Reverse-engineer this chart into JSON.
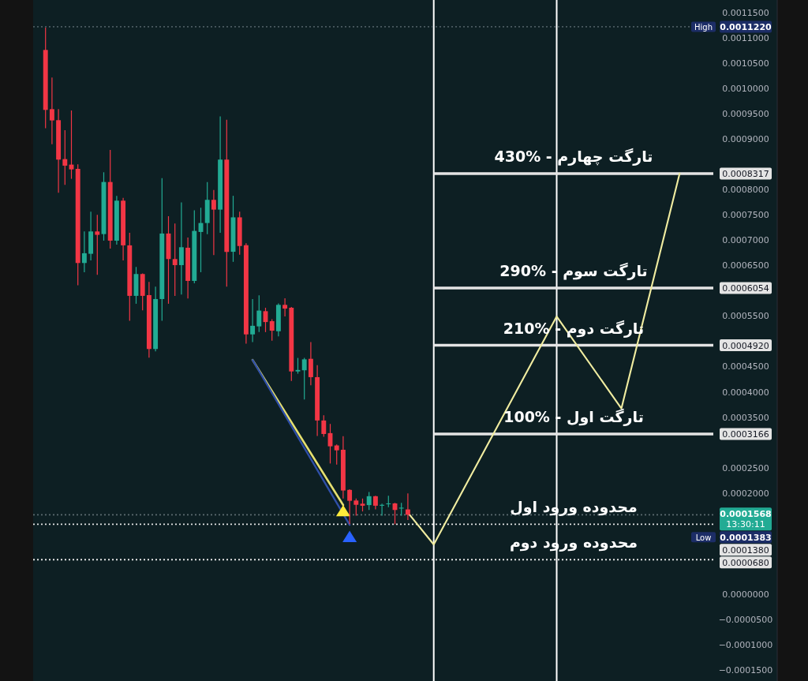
{
  "chart_data": {
    "type": "candlestick",
    "categories": [
      null,
      null,
      null,
      null,
      null,
      null,
      null,
      null,
      null,
      null,
      null,
      null,
      null,
      null,
      null,
      null,
      null,
      null,
      null,
      null,
      null,
      null,
      null,
      null,
      null,
      null,
      null,
      null,
      null,
      null,
      null,
      null,
      null,
      null,
      null,
      null,
      null,
      null,
      null,
      null,
      null,
      null,
      null,
      null,
      null,
      null,
      null,
      null,
      null,
      null,
      null,
      null,
      null,
      null,
      null,
      null,
      null,
      null,
      null,
      null,
      null,
      null,
      null,
      null,
      null,
      null,
      null,
      null,
      null,
      null,
      null,
      null,
      null,
      null,
      null,
      null,
      null,
      null,
      null,
      null,
      null,
      null,
      null,
      null,
      null,
      null,
      null,
      null,
      null,
      null,
      null,
      null,
      null,
      null,
      null,
      null,
      null,
      null,
      null,
      null,
      null,
      null,
      null
    ],
    "ohlc": [
      [
        0.0010762,
        0.0011204,
        0.0009212,
        0.0009576
      ],
      [
        0.0009591,
        0.0010216,
        0.0008899,
        0.0009368
      ],
      [
        0.0009373,
        0.0009591,
        0.0007937,
        0.0008593
      ],
      [
        0.0008603,
        0.0009175,
        0.0008093,
        0.0008473
      ],
      [
        0.0008494,
        0.0009565,
        0.0008213,
        0.00084
      ],
      [
        0.000841,
        0.0008499,
        0.0006106,
        0.0006548
      ],
      [
        0.0006548,
        0.0007172,
        0.0006366,
        0.0006741
      ],
      [
        0.000673,
        0.0007563,
        0.00066,
        0.0007172
      ],
      [
        0.0007172,
        0.00075,
        0.0006314,
        0.0007105
      ],
      [
        0.000712,
        0.0008343,
        0.000699,
        0.000815
      ],
      [
        0.000815,
        0.0008785,
        0.0006834,
        0.000699
      ],
      [
        0.000699,
        0.0007875,
        0.0006912,
        0.0007781
      ],
      [
        0.0007781,
        0.0007838,
        0.00066,
        0.0006897
      ],
      [
        0.0006897,
        0.0007146,
        0.0005404,
        0.0005898
      ],
      [
        0.0005898,
        0.000647,
        0.0005742,
        0.000633
      ],
      [
        0.000633,
        0.000634,
        0.0005612,
        0.0005898
      ],
      [
        0.0005913,
        0.0006174,
        0.0004675,
        0.0004847
      ],
      [
        0.0004847,
        0.000608,
        0.00048,
        0.0005835
      ],
      [
        0.0005835,
        0.0008228,
        0.0005404,
        0.0007131
      ],
      [
        0.0007131,
        0.0007474,
        0.0005742,
        0.0006626
      ],
      [
        0.0006626,
        0.0007328,
        0.0005898,
        0.0006506
      ],
      [
        0.0006506,
        0.0007745,
        0.0005924,
        0.000686
      ],
      [
        0.000685,
        0.0007053,
        0.0005846,
        0.0006194
      ],
      [
        0.0006194,
        0.0007589,
        0.0006148,
        0.0007183
      ],
      [
        0.0007162,
        0.0007641,
        0.0006366,
        0.0007339
      ],
      [
        0.0007339,
        0.000815,
        0.000712,
        0.0007797
      ],
      [
        0.0007797,
        0.0007994,
        0.0006704,
        0.0007604
      ],
      [
        0.0007604,
        0.0009446,
        0.0007146,
        0.0008593
      ],
      [
        0.0008593,
        0.0009383,
        0.000608,
        0.0006767
      ],
      [
        0.000677,
        0.0007877,
        0.0006571,
        0.0007451
      ],
      [
        0.0007451,
        0.0007565,
        0.0006713,
        0.0006884
      ],
      [
        0.00069,
        0.000694,
        0.0004954,
        0.0005136
      ],
      [
        0.0005136,
        0.0005834,
        0.0004982,
        0.0005306
      ],
      [
        0.0005294,
        0.0005907,
        0.0005181,
        0.0005607
      ],
      [
        0.0005595,
        0.0005663,
        0.0005181,
        0.000538
      ],
      [
        0.0005397,
        0.0005436,
        0.0005011,
        0.0005209
      ],
      [
        0.0005198,
        0.0005749,
        0.0005096,
        0.000572
      ],
      [
        0.000572,
        0.0005851,
        0.0005493,
        0.0005646
      ],
      [
        0.0005663,
        0.000568,
        0.0004216,
        0.0004403
      ],
      [
        0.0004403,
        0.000467,
        0.0004358,
        0.0004432
      ],
      [
        0.0004426,
        0.000467,
        0.0003847,
        0.0004642
      ],
      [
        0.0004653,
        0.0004982,
        0.0004131,
        0.000429
      ],
      [
        0.000429,
        0.0004528,
        0.0003127,
        0.0003433
      ],
      [
        0.0003433,
        0.0003535,
        0.000311,
        0.0003166
      ],
      [
        0.0003183,
        0.0003365,
        0.0002582,
        0.0002922
      ],
      [
        0.0002939,
        0.0002957,
        0.0002559,
        0.0002843
      ],
      [
        0.0002854,
        0.0003121,
        0.0001889,
        0.0002048
      ],
      [
        0.000206,
        0.0002071,
        0.0001383,
        0.0001844
      ],
      [
        0.000185,
        0.0001889,
        0.0001549,
        0.0001765
      ],
      [
        0.0001787,
        0.0001889,
        0.0001634,
        0.0001747
      ],
      [
        0.0001759,
        0.000202,
        0.0001663,
        0.0001935
      ],
      [
        0.0001935,
        0.0001946,
        0.0001674,
        0.0001747
      ],
      [
        0.0001747,
        0.0001787,
        0.0001549,
        0.0001765
      ],
      [
        0.0001776,
        0.0001946,
        0.0001719,
        0.0001793
      ],
      [
        0.0001793,
        0.0001804,
        0.0001379,
        0.0001663
      ],
      [
        0.0001691,
        0.0001804,
        0.0001549,
        0.0001708
      ],
      [
        0.0001674,
        0.0001992,
        0.0001464,
        0.0001568
      ],
      null,
      null,
      null,
      null,
      null,
      null,
      null,
      null,
      null,
      null,
      null,
      null,
      null,
      null,
      null,
      null,
      null,
      null,
      null,
      null,
      null,
      null,
      null,
      null,
      null,
      null,
      null,
      null,
      null,
      null,
      null,
      null,
      null,
      null,
      null,
      null,
      null,
      null,
      null,
      null,
      null,
      null,
      null,
      null,
      null,
      null
    ],
    "series": [
      {
        "type": "line",
        "color": "#e6e070",
        "values": [
          null,
          null,
          null,
          null,
          null,
          null,
          null,
          null,
          null,
          null,
          null,
          null,
          null,
          null,
          null,
          null,
          null,
          null,
          null,
          null,
          null,
          null,
          null,
          null,
          null,
          null,
          null,
          null,
          null,
          null,
          null,
          null,
          0.000463,
          null,
          null,
          null,
          null,
          null,
          null,
          null,
          null,
          null,
          null,
          null,
          null,
          null,
          0.000176,
          null,
          null,
          null,
          null,
          null,
          null,
          null,
          null,
          null,
          null,
          null,
          null,
          null,
          null,
          null,
          null,
          null,
          null,
          null,
          null,
          null,
          null,
          null,
          null,
          null,
          null,
          null,
          null,
          null,
          null,
          null,
          null,
          null,
          null,
          null,
          null,
          null,
          null,
          null,
          null,
          null,
          null,
          null,
          null,
          null,
          null,
          null,
          null,
          null,
          null,
          null,
          null,
          null,
          null,
          null,
          null
        ]
      },
      {
        "type": "line",
        "color": "#2f4fa8",
        "values": [
          null,
          null,
          null,
          null,
          null,
          null,
          null,
          null,
          null,
          null,
          null,
          null,
          null,
          null,
          null,
          null,
          null,
          null,
          null,
          null,
          null,
          null,
          null,
          null,
          null,
          null,
          null,
          null,
          null,
          null,
          null,
          null,
          0.000463,
          null,
          null,
          null,
          null,
          null,
          null,
          null,
          null,
          null,
          null,
          null,
          null,
          null,
          null,
          0.000137,
          null,
          null,
          null,
          null,
          null,
          null,
          null,
          null,
          null,
          null,
          null,
          null,
          null,
          null,
          null,
          null,
          null,
          null,
          null,
          null,
          null,
          null,
          null,
          null,
          null,
          null,
          null,
          null,
          null,
          null,
          null,
          null,
          null,
          null,
          null,
          null,
          null,
          null,
          null,
          null,
          null,
          null,
          null,
          null,
          null,
          null,
          null,
          null,
          null,
          null,
          null,
          null,
          null,
          null,
          null
        ]
      },
      {
        "type": "line",
        "color": "#f0eca0",
        "values": [
          null,
          null,
          null,
          null,
          null,
          null,
          null,
          null,
          null,
          null,
          null,
          null,
          null,
          null,
          null,
          null,
          null,
          null,
          null,
          null,
          null,
          null,
          null,
          null,
          null,
          null,
          null,
          null,
          null,
          null,
          null,
          null,
          null,
          null,
          null,
          null,
          null,
          null,
          null,
          null,
          null,
          null,
          null,
          null,
          null,
          null,
          null,
          null,
          null,
          null,
          null,
          null,
          null,
          null,
          null,
          null,
          0.000161,
          null,
          null,
          null,
          9.8e-05,
          null,
          null,
          null,
          null,
          null,
          null,
          null,
          null,
          null,
          null,
          null,
          null,
          null,
          null,
          null,
          null,
          null,
          null,
          0.000549,
          null,
          null,
          null,
          null,
          null,
          null,
          null,
          null,
          null,
          0.000367,
          null,
          null,
          null,
          null,
          null,
          null,
          null,
          null,
          0.0008317,
          null,
          null,
          null,
          null
        ]
      },
      {
        "type": "scatter",
        "marker": "triangle",
        "color": "#ffeb3b",
        "values": [
          null,
          null,
          null,
          null,
          null,
          null,
          null,
          null,
          null,
          null,
          null,
          null,
          null,
          null,
          null,
          null,
          null,
          null,
          null,
          null,
          null,
          null,
          null,
          null,
          null,
          null,
          null,
          null,
          null,
          null,
          null,
          null,
          null,
          null,
          null,
          null,
          null,
          null,
          null,
          null,
          null,
          null,
          null,
          null,
          null,
          null,
          0.000165,
          null,
          null,
          null,
          null,
          null,
          null,
          null,
          null,
          null,
          null,
          null,
          null,
          null,
          null,
          null,
          null,
          null,
          null,
          null,
          null,
          null,
          null,
          null,
          null,
          null,
          null,
          null,
          null,
          null,
          null,
          null,
          null,
          null,
          null,
          null,
          null,
          null,
          null,
          null,
          null,
          null,
          null,
          null,
          null,
          null,
          null,
          null,
          null,
          null,
          null,
          null,
          null,
          null,
          null,
          null,
          null
        ]
      },
      {
        "type": "scatter",
        "marker": "triangle",
        "color": "#2962ff",
        "values": [
          null,
          null,
          null,
          null,
          null,
          null,
          null,
          null,
          null,
          null,
          null,
          null,
          null,
          null,
          null,
          null,
          null,
          null,
          null,
          null,
          null,
          null,
          null,
          null,
          null,
          null,
          null,
          null,
          null,
          null,
          null,
          null,
          null,
          null,
          null,
          null,
          null,
          null,
          null,
          null,
          null,
          null,
          null,
          null,
          null,
          null,
          null,
          0.000114,
          null,
          null,
          null,
          null,
          null,
          null,
          null,
          null,
          null,
          null,
          null,
          null,
          null,
          null,
          null,
          null,
          null,
          null,
          null,
          null,
          null,
          null,
          null,
          null,
          null,
          null,
          null,
          null,
          null,
          null,
          null,
          null,
          null,
          null,
          null,
          null,
          null,
          null,
          null,
          null,
          null,
          null,
          null,
          null,
          null,
          null,
          null,
          null,
          null,
          null,
          null,
          null,
          null,
          null,
          null
        ]
      }
    ],
    "ylim": [
      -0.000172,
      0.001175
    ],
    "yticks": [
      {
        "value": 0.00115,
        "label": "0.0011500"
      },
      {
        "value": 0.001122,
        "label": "0.0011220"
      },
      {
        "value": 0.0011,
        "label": "0.0011000"
      },
      {
        "value": 0.00105,
        "label": "0.0010500"
      },
      {
        "value": 0.001,
        "label": "0.0010000"
      },
      {
        "value": 0.00095,
        "label": "0.0009500"
      },
      {
        "value": 0.0009,
        "label": "0.0009000"
      },
      {
        "value": 0.0008317,
        "label": "0.0008317"
      },
      {
        "value": 0.0008,
        "label": "0.0008000"
      },
      {
        "value": 0.00075,
        "label": "0.0007500"
      },
      {
        "value": 0.0007,
        "label": "0.0007000"
      },
      {
        "value": 0.00065,
        "label": "0.0006500"
      },
      {
        "value": 0.0006054,
        "label": "0.0006054"
      },
      {
        "value": 0.00055,
        "label": "0.0005500"
      },
      {
        "value": 0.000492,
        "label": "0.0004920"
      },
      {
        "value": 0.00045,
        "label": "0.0004500"
      },
      {
        "value": 0.0004,
        "label": "0.0004000"
      },
      {
        "value": 0.00035,
        "label": "0.0003500"
      },
      {
        "value": 0.0003166,
        "label": "0.0003166"
      },
      {
        "value": 0.00025,
        "label": "0.0002500"
      },
      {
        "value": 0.0002,
        "label": "0.0002000"
      },
      {
        "value": 0.0001568,
        "label": "0.0001568"
      },
      {
        "value": 6.8e-05,
        "label": "0.0000680"
      },
      {
        "value": 0,
        "label": "0.0000000"
      },
      {
        "value": -5e-05,
        "label": "−0.0000500"
      },
      {
        "value": -0.0001,
        "label": "−0.0001000"
      },
      {
        "value": -0.00015,
        "label": "−0.0001500"
      }
    ],
    "tick_labels": "y",
    "annotations": [
      {
        "text": "High",
        "y": 0.001122
      },
      "13:30:11",
      "Low",
      "0.0001383",
      "0.0001380"
    ],
    "ref_lines": [
      {
        "axis": "y",
        "value": 0.001122,
        "color": "#4a5a60",
        "line_style": "dotted"
      },
      {
        "axis": "y",
        "value": 0.0008317,
        "label": "تارگت چهارم - 430%",
        "color": "#e4e4e4",
        "line_style": "solid"
      },
      {
        "axis": "y",
        "value": 0.0006054,
        "label": "تارگت سوم - 290%",
        "color": "#e4e4e4",
        "line_style": "solid"
      },
      {
        "axis": "y",
        "value": 0.000492,
        "label": "تارگت دوم - 210%",
        "color": "#e4e4e4",
        "line_style": "solid"
      },
      {
        "axis": "y",
        "value": 0.0003166,
        "label": "تارگت اول - 100%",
        "color": "#e4e4e4",
        "line_style": "solid"
      },
      {
        "axis": "y",
        "value": 0.0001568,
        "color": "#5d6b70",
        "line_style": "dotted"
      },
      {
        "axis": "y",
        "value": 0.000138,
        "label": "محدوده ورود اول",
        "color": "#e4e4e4",
        "line_style": "dotted"
      },
      {
        "axis": "y",
        "value": 6.8e-05,
        "label": "محدوده ورود دوم",
        "color": "#e4e4e4",
        "line_style": "dotted"
      }
    ]
  }
}
